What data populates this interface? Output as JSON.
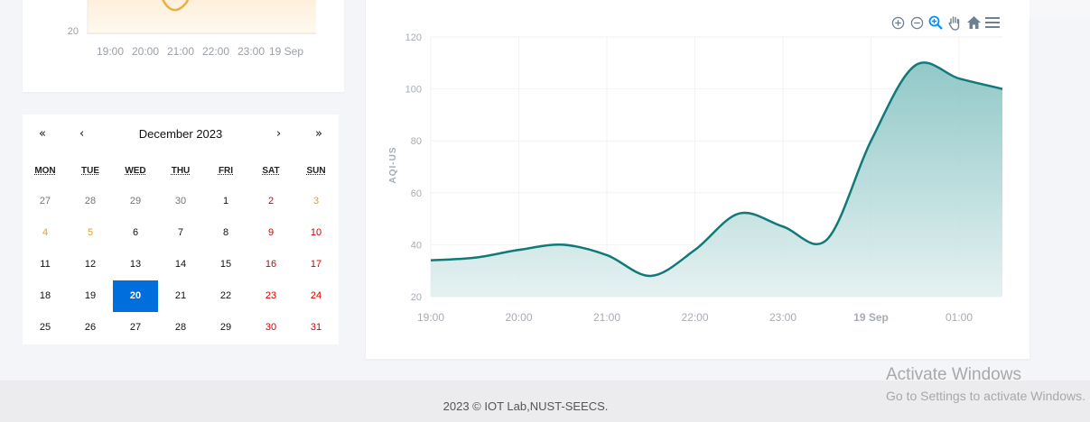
{
  "top_chart": {
    "y_tick": "20",
    "x_ticks": [
      "19:00",
      "20:00",
      "21:00",
      "22:00",
      "23:00",
      "19 Sep"
    ]
  },
  "calendar": {
    "prev_year": "«",
    "prev_month": "‹",
    "title": "December 2023",
    "next_month": "›",
    "next_year": "»",
    "weekdays": [
      "MON",
      "TUE",
      "WED",
      "THU",
      "FRI",
      "SAT",
      "SUN"
    ],
    "rows": [
      [
        "27",
        "28",
        "29",
        "30",
        "1",
        "2",
        "3"
      ],
      [
        "4",
        "5",
        "6",
        "7",
        "8",
        "9",
        "10"
      ],
      [
        "11",
        "12",
        "13",
        "14",
        "15",
        "16",
        "17"
      ],
      [
        "18",
        "19",
        "20",
        "21",
        "22",
        "23",
        "24"
      ],
      [
        "25",
        "26",
        "27",
        "28",
        "29",
        "30",
        "31"
      ]
    ],
    "selected": "20"
  },
  "toolbar": {
    "icons": [
      "zoom-in-icon",
      "zoom-out-icon",
      "selection-zoom-icon",
      "pan-hand-icon",
      "home-reset-icon",
      "menu-icon"
    ],
    "active_color": "#008ffb"
  },
  "chart_data": {
    "type": "area",
    "title": "",
    "xlabel": "",
    "ylabel": "AQI-US",
    "ylim": [
      20,
      120
    ],
    "y_ticks": [
      "120",
      "100",
      "80",
      "60",
      "40",
      "20"
    ],
    "x_ticks": [
      "19:00",
      "20:00",
      "21:00",
      "22:00",
      "23:00",
      "19 Sep",
      "01:00"
    ],
    "x": [
      "19:00",
      "19:30",
      "20:00",
      "20:30",
      "21:00",
      "21:30",
      "22:00",
      "22:30",
      "23:00",
      "23:30",
      "00:00",
      "00:30",
      "01:00",
      "01:30"
    ],
    "series": [
      {
        "values": [
          34,
          35,
          38,
          40,
          36,
          28,
          38,
          52,
          47,
          42,
          80,
          109,
          104,
          100
        ]
      }
    ],
    "line_color": "#117a78",
    "grid": true,
    "legend": "none"
  },
  "footer": {
    "text": "2023 © IOT Lab,NUST-SEECS."
  },
  "watermark": {
    "title": "Activate Windows",
    "subtitle": "Go to Settings to activate Windows."
  }
}
